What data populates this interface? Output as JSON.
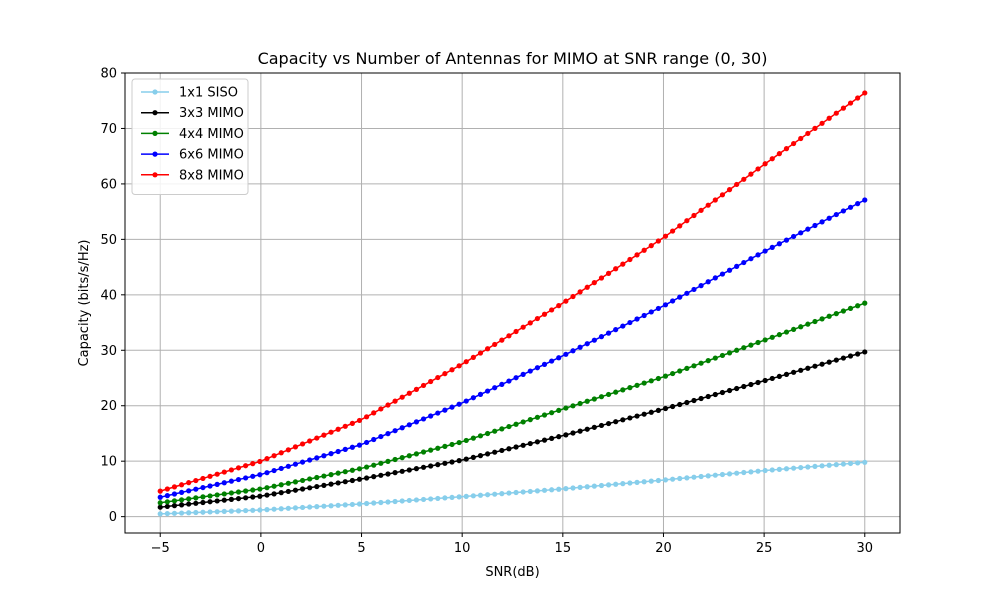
{
  "chart_data": {
    "type": "line",
    "title": "Capacity vs Number of Antennas for MIMO at SNR range (0, 30)",
    "xlabel": "SNR(dB)",
    "ylabel": "Capacity (bits/s/Hz)",
    "xlim": [
      -6.75,
      31.75
    ],
    "ylim": [
      -2.95,
      80
    ],
    "xticks": [
      -5,
      0,
      5,
      10,
      15,
      20,
      25,
      30
    ],
    "xtick_labels": [
      "−5",
      "0",
      "5",
      "10",
      "15",
      "20",
      "25",
      "30"
    ],
    "yticks": [
      0,
      10,
      20,
      30,
      40,
      50,
      60,
      70,
      80
    ],
    "ytick_labels": [
      "0",
      "10",
      "20",
      "30",
      "40",
      "50",
      "60",
      "70",
      "80"
    ],
    "grid": true,
    "legend_position": "top-left",
    "x_range": {
      "start": -5,
      "end": 30,
      "points": 100
    },
    "series": [
      {
        "name": "1x1 SISO",
        "color": "#87CEEB",
        "anchors_x": [
          -5,
          0,
          5,
          10,
          15,
          20,
          25,
          30
        ],
        "anchors_y": [
          0.5,
          1.2,
          2.3,
          3.6,
          5.0,
          6.6,
          8.3,
          9.8
        ]
      },
      {
        "name": "3x3 MIMO",
        "color": "#000000",
        "anchors_x": [
          -5,
          0,
          5,
          10,
          15,
          20,
          25,
          30
        ],
        "anchors_y": [
          1.7,
          3.7,
          6.8,
          10.2,
          14.6,
          19.4,
          24.5,
          29.7
        ]
      },
      {
        "name": "4x4 MIMO",
        "color": "#008000",
        "anchors_x": [
          -5,
          0,
          5,
          10,
          15,
          20,
          25,
          30
        ],
        "anchors_y": [
          2.5,
          5.0,
          8.7,
          13.5,
          19.4,
          25.2,
          31.8,
          38.5
        ]
      },
      {
        "name": "6x6 MIMO",
        "color": "#0000FF",
        "anchors_x": [
          -5,
          0,
          5,
          10,
          15,
          20,
          25,
          30
        ],
        "anchors_y": [
          3.5,
          7.6,
          13.0,
          20.5,
          29.0,
          38.0,
          47.8,
          57.1
        ]
      },
      {
        "name": "8x8 MIMO",
        "color": "#FF0000",
        "anchors_x": [
          -5,
          0,
          5,
          10,
          15,
          20,
          25,
          30
        ],
        "anchors_y": [
          4.6,
          10.0,
          17.5,
          27.5,
          38.5,
          50.3,
          63.5,
          76.4
        ]
      }
    ]
  }
}
